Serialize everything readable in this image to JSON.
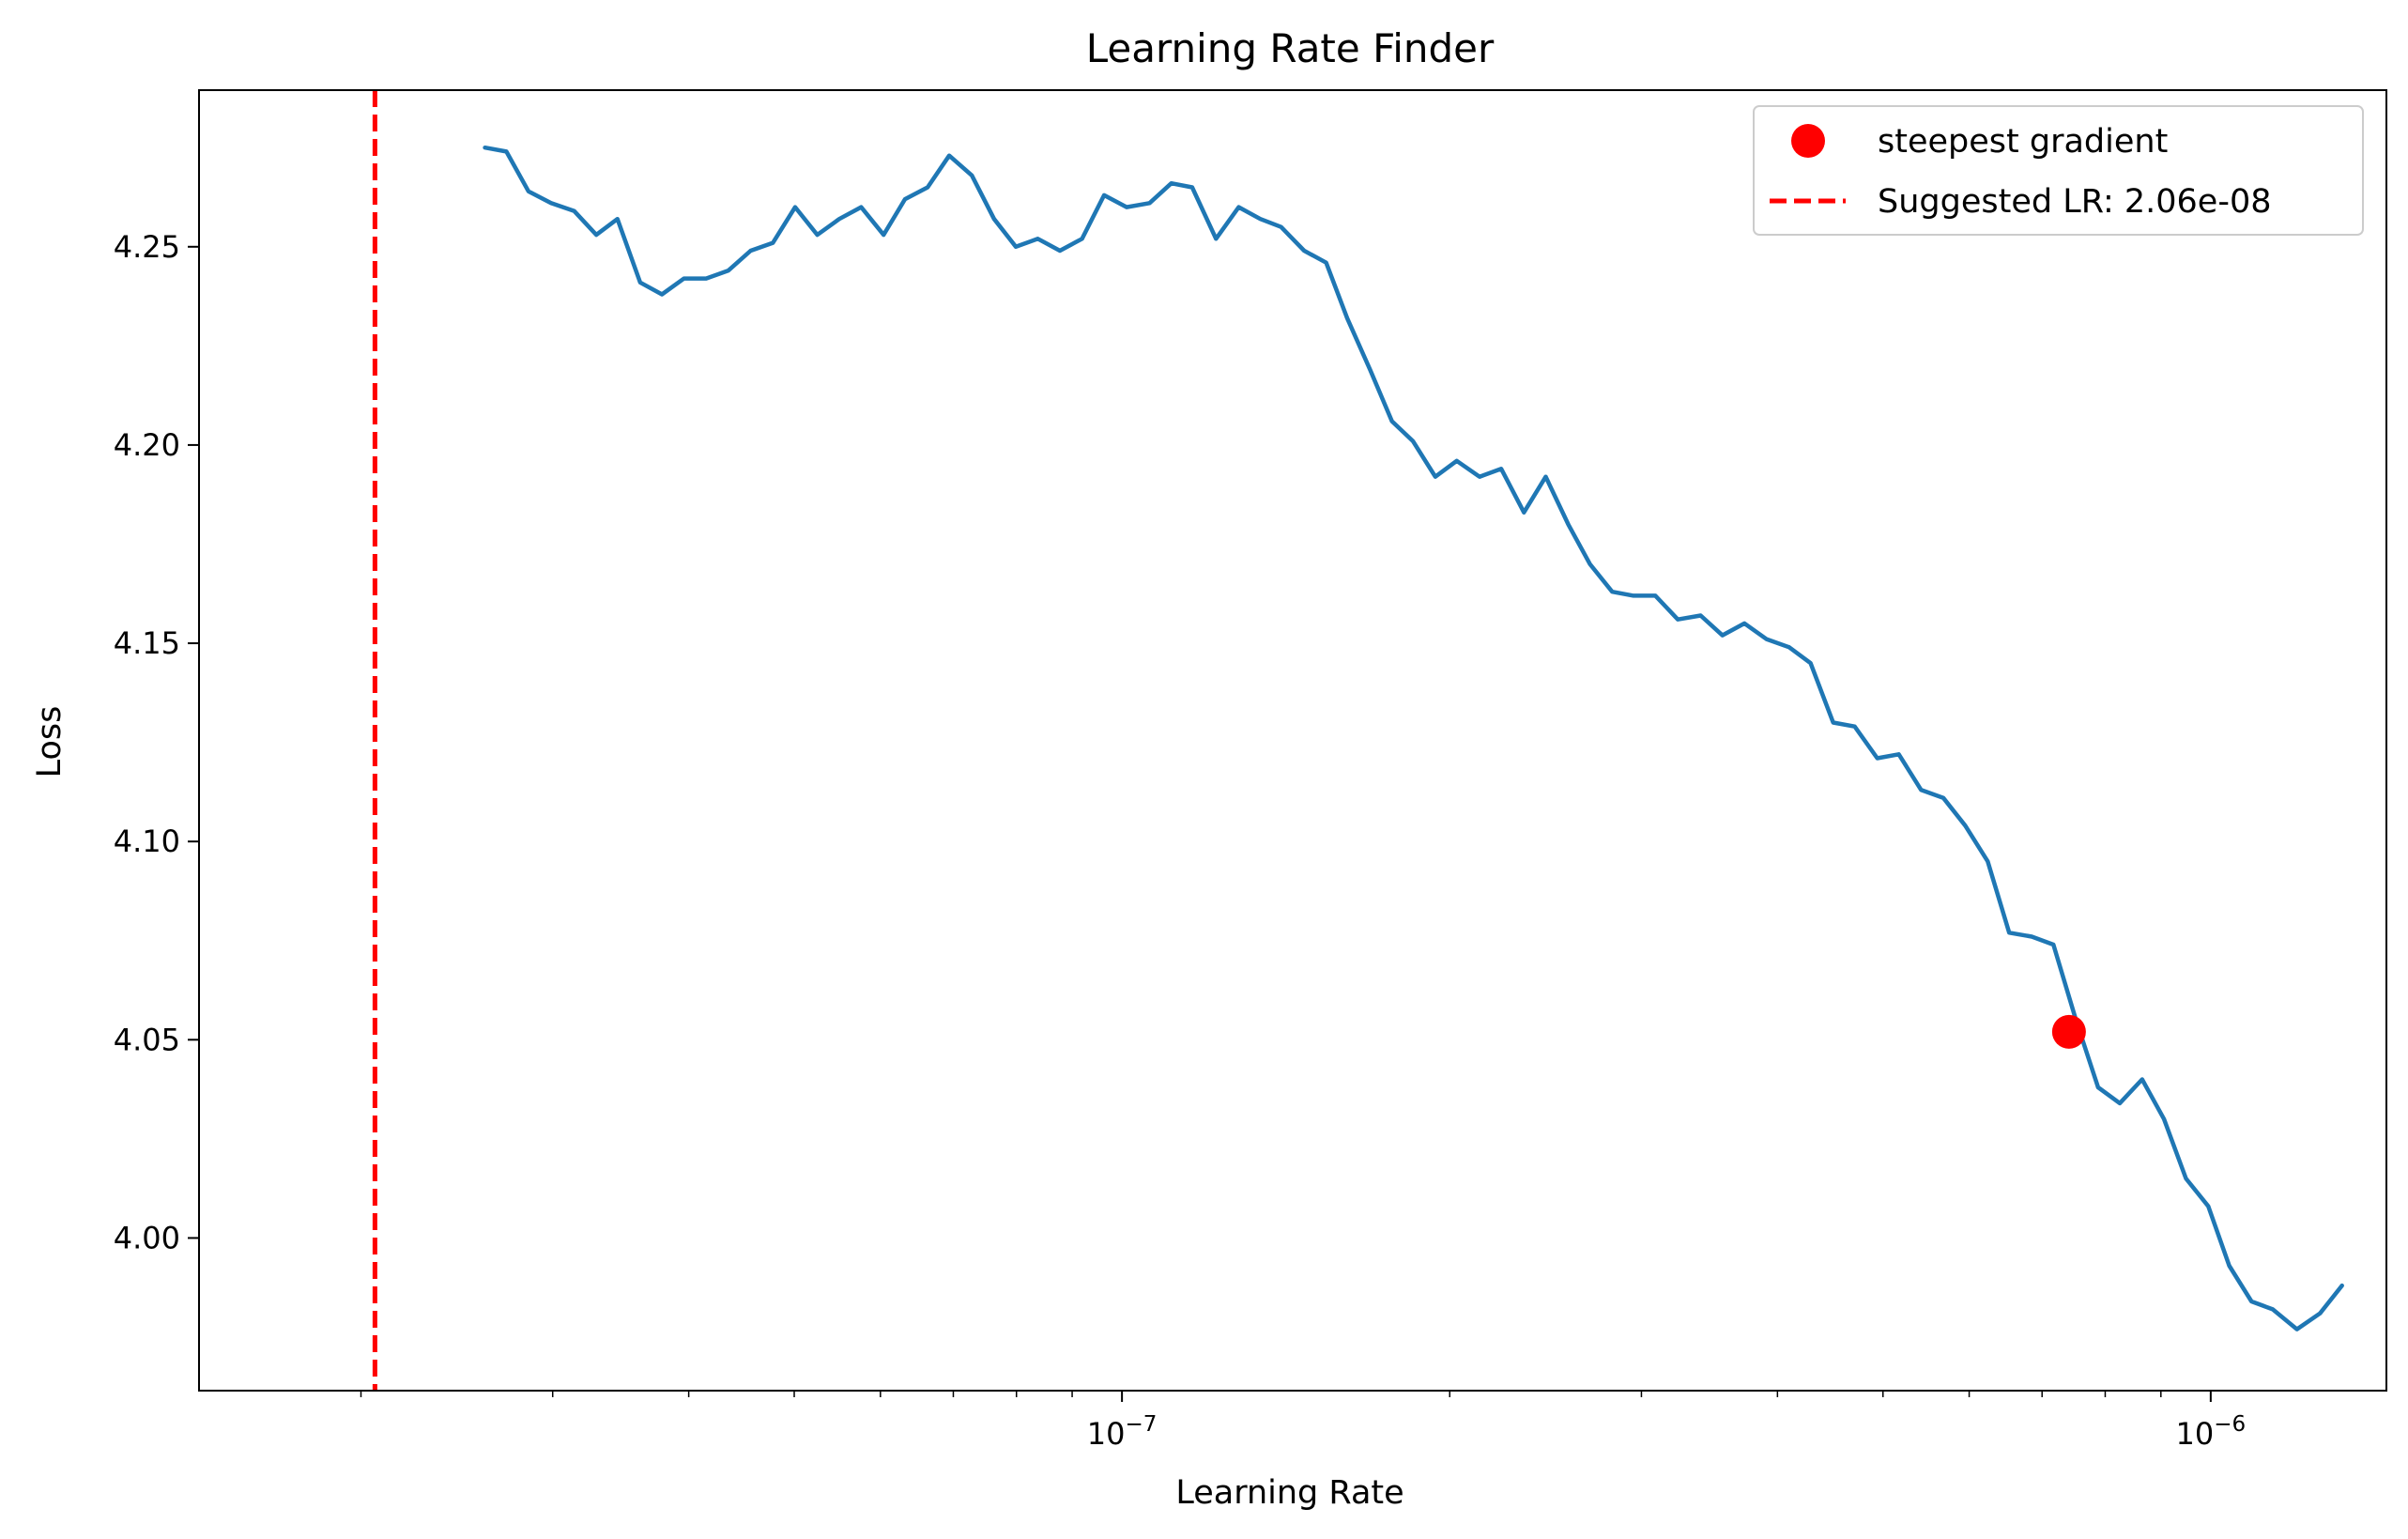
{
  "chart_data": {
    "type": "line",
    "title": "Learning Rate Finder",
    "xlabel": "Learning Rate",
    "ylabel": "Loss",
    "xscale": "log",
    "xlim": [
      1.42e-08,
      1.45e-06
    ],
    "ylim": [
      3.9615,
      4.2895
    ],
    "grid": false,
    "legend_placement": "top-right",
    "x_ticks": [
      {
        "value": 1e-07,
        "mantissa": "10",
        "exponent": "−7"
      },
      {
        "value": 1e-06,
        "mantissa": "10",
        "exponent": "−6"
      }
    ],
    "y_ticks": [
      {
        "value": 4.0,
        "label": "4.00"
      },
      {
        "value": 4.05,
        "label": "4.05"
      },
      {
        "value": 4.1,
        "label": "4.10"
      },
      {
        "value": 4.15,
        "label": "4.15"
      },
      {
        "value": 4.2,
        "label": "4.20"
      },
      {
        "value": 4.25,
        "label": "4.25"
      }
    ],
    "series": [
      {
        "color": "#1f77b4",
        "x": [
          2.6e-08,
          2.72e-08,
          2.85e-08,
          2.99e-08,
          3.14e-08,
          3.29e-08,
          3.44e-08,
          3.61e-08,
          3.78e-08,
          3.96e-08,
          4.15e-08,
          4.35e-08,
          4.56e-08,
          4.78e-08,
          5.01e-08,
          5.25e-08,
          5.5e-08,
          5.76e-08,
          6.04e-08,
          6.32e-08,
          6.63e-08,
          6.94e-08,
          7.28e-08,
          7.63e-08,
          7.99e-08,
          8.37e-08,
          8.77e-08,
          9.19e-08,
          9.63e-08,
          1.01e-07,
          1.06e-07,
          1.11e-07,
          1.16e-07,
          1.22e-07,
          1.28e-07,
          1.34e-07,
          1.4e-07,
          1.47e-07,
          1.54e-07,
          1.61e-07,
          1.69e-07,
          1.77e-07,
          1.85e-07,
          1.94e-07,
          2.03e-07,
          2.13e-07,
          2.23e-07,
          2.34e-07,
          2.45e-07,
          2.57e-07,
          2.69e-07,
          2.82e-07,
          2.95e-07,
          3.09e-07,
          3.24e-07,
          3.4e-07,
          3.56e-07,
          3.73e-07,
          3.91e-07,
          4.1e-07,
          4.29e-07,
          4.5e-07,
          4.71e-07,
          4.94e-07,
          5.17e-07,
          5.42e-07,
          5.68e-07,
          5.95e-07,
          6.24e-07,
          6.53e-07,
          6.85e-07,
          7.17e-07,
          7.52e-07,
          7.88e-07,
          8.25e-07,
          8.65e-07,
          9.06e-07,
          9.49e-07,
          9.95e-07,
          1.04e-06,
          1.09e-06,
          1.14e-06,
          1.2e-06,
          1.26e-06,
          1.32e-06
        ],
        "values": [
          4.275,
          4.274,
          4.264,
          4.261,
          4.259,
          4.253,
          4.257,
          4.241,
          4.238,
          4.242,
          4.242,
          4.244,
          4.249,
          4.251,
          4.26,
          4.253,
          4.257,
          4.26,
          4.253,
          4.262,
          4.265,
          4.273,
          4.268,
          4.257,
          4.25,
          4.252,
          4.249,
          4.252,
          4.263,
          4.26,
          4.261,
          4.266,
          4.265,
          4.252,
          4.26,
          4.257,
          4.255,
          4.249,
          4.246,
          4.232,
          4.219,
          4.206,
          4.201,
          4.192,
          4.196,
          4.192,
          4.194,
          4.183,
          4.192,
          4.18,
          4.17,
          4.163,
          4.162,
          4.162,
          4.156,
          4.157,
          4.152,
          4.155,
          4.151,
          4.149,
          4.145,
          4.13,
          4.129,
          4.121,
          4.122,
          4.113,
          4.111,
          4.104,
          4.095,
          4.077,
          4.076,
          4.074,
          4.055,
          4.038,
          4.034,
          4.04,
          4.03,
          4.015,
          4.008,
          3.993,
          3.984,
          3.982,
          3.977,
          3.981,
          3.988
        ]
      }
    ],
    "steepest_point": {
      "x": 7.41e-07,
      "y": 4.052,
      "color": "#ff0000"
    },
    "suggested_lr_line": {
      "x": 2.06e-08,
      "color": "#ff0000"
    },
    "legend": [
      {
        "label": "steepest gradient",
        "marker": "circle",
        "color": "#ff0000"
      },
      {
        "label": "Suggested LR: 2.06e-08",
        "marker": "dashed-line",
        "color": "#ff0000"
      }
    ]
  }
}
